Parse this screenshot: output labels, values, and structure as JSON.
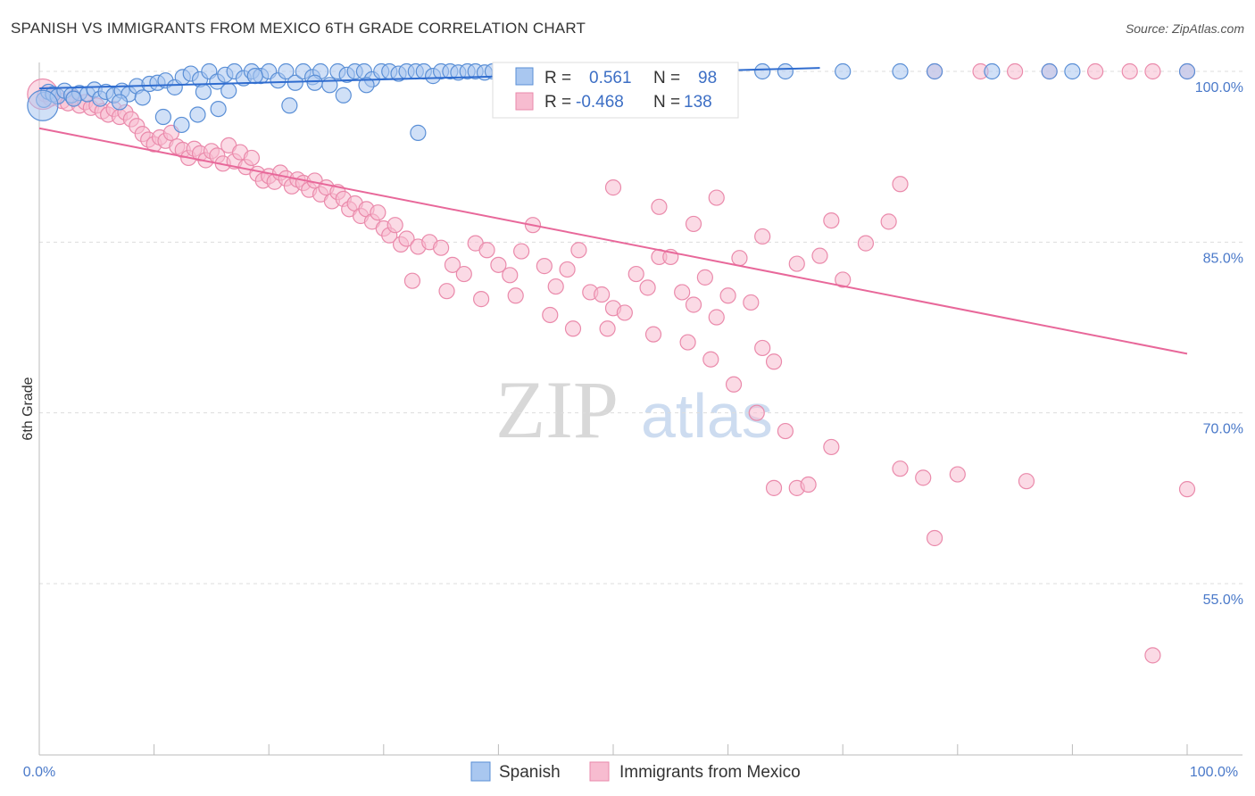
{
  "header": {
    "title": "SPANISH VS IMMIGRANTS FROM MEXICO 6TH GRADE CORRELATION CHART",
    "source": "Source: ZipAtlas.com"
  },
  "watermark": {
    "zip": "ZIP",
    "atlas": "atlas"
  },
  "colors": {
    "spanish_fill": "#a9c7f0",
    "spanish_stroke": "#5a8fd6",
    "spanish_line": "#2f6ccf",
    "mexico_fill": "#f7bcd0",
    "mexico_stroke": "#ea8aab",
    "mexico_line": "#e8689a",
    "axis_text": "#4a79c9",
    "grid": "#dddddd"
  },
  "chart_data": {
    "type": "scatter",
    "title": "SPANISH VS IMMIGRANTS FROM MEXICO 6TH GRADE CORRELATION CHART",
    "xlabel": "",
    "ylabel": "6th Grade",
    "xlim": [
      0,
      100
    ],
    "ylim": [
      40,
      100
    ],
    "x_tick_labels": [
      "0.0%",
      "100.0%"
    ],
    "y_ticks": [
      {
        "value": 100,
        "label": "100.0%"
      },
      {
        "value": 85,
        "label": "85.0%"
      },
      {
        "value": 70,
        "label": "70.0%"
      },
      {
        "value": 55,
        "label": "55.0%"
      }
    ],
    "legend": [
      {
        "r_label": "R =",
        "r_value": "0.561",
        "n_label": "N =",
        "n_value": "98"
      },
      {
        "r_label": "R =",
        "r_value": "-0.468",
        "n_label": "N =",
        "n_value": "138"
      }
    ],
    "series": [
      {
        "name": "Spanish",
        "trend": {
          "x": [
            0,
            68
          ],
          "y": [
            98.5,
            100.3
          ]
        },
        "points": [
          [
            0.4,
            97.5
          ],
          [
            0.8,
            98.2
          ],
          [
            1.2,
            98.0
          ],
          [
            1.6,
            97.8
          ],
          [
            2.2,
            98.3
          ],
          [
            2.8,
            97.9
          ],
          [
            3.5,
            98.1
          ],
          [
            4.2,
            98.0
          ],
          [
            4.8,
            98.4
          ],
          [
            5.3,
            97.6
          ],
          [
            5.8,
            98.2
          ],
          [
            6.5,
            97.9
          ],
          [
            7.2,
            98.3
          ],
          [
            7.8,
            98.0
          ],
          [
            8.5,
            98.7
          ],
          [
            9.0,
            97.7
          ],
          [
            9.6,
            98.9
          ],
          [
            10.3,
            99.0
          ],
          [
            11.0,
            99.2
          ],
          [
            11.8,
            98.6
          ],
          [
            12.5,
            99.5
          ],
          [
            13.2,
            99.8
          ],
          [
            14.0,
            99.3
          ],
          [
            14.8,
            100
          ],
          [
            15.5,
            99.1
          ],
          [
            16.2,
            99.7
          ],
          [
            17.0,
            100
          ],
          [
            17.8,
            99.4
          ],
          [
            18.5,
            100
          ],
          [
            19.3,
            99.6
          ],
          [
            20.0,
            100
          ],
          [
            20.8,
            99.2
          ],
          [
            21.5,
            100
          ],
          [
            22.3,
            99.0
          ],
          [
            23.0,
            100
          ],
          [
            23.8,
            99.5
          ],
          [
            24.5,
            100
          ],
          [
            25.3,
            98.8
          ],
          [
            26.0,
            100
          ],
          [
            26.8,
            99.7
          ],
          [
            27.5,
            100
          ],
          [
            28.3,
            100
          ],
          [
            29.0,
            99.3
          ],
          [
            29.8,
            100
          ],
          [
            30.5,
            100
          ],
          [
            31.3,
            99.8
          ],
          [
            32.0,
            100
          ],
          [
            32.8,
            100
          ],
          [
            33.5,
            100
          ],
          [
            34.3,
            99.6
          ],
          [
            35.0,
            100
          ],
          [
            35.8,
            100
          ],
          [
            36.5,
            99.9
          ],
          [
            37.3,
            100
          ],
          [
            38.0,
            100
          ],
          [
            38.8,
            99.9
          ],
          [
            39.5,
            100
          ],
          [
            40.3,
            100
          ],
          [
            41.0,
            100
          ],
          [
            41.8,
            99.9
          ],
          [
            42.5,
            100
          ],
          [
            43.5,
            100
          ],
          [
            44.5,
            100
          ],
          [
            45.5,
            99.9
          ],
          [
            46.5,
            100
          ],
          [
            47.5,
            100
          ],
          [
            48.5,
            100
          ],
          [
            49.5,
            99.9
          ],
          [
            50.5,
            100
          ],
          [
            51.5,
            100
          ],
          [
            52.5,
            100
          ],
          [
            53.5,
            100
          ],
          [
            55.0,
            100
          ],
          [
            57.0,
            100
          ],
          [
            60.0,
            100
          ],
          [
            63.0,
            100
          ],
          [
            65.0,
            100
          ],
          [
            70.0,
            100
          ],
          [
            75.0,
            100
          ],
          [
            78.0,
            100
          ],
          [
            83.0,
            100
          ],
          [
            88.0,
            100
          ],
          [
            90.0,
            100
          ],
          [
            100,
            100
          ],
          [
            10.8,
            96.0
          ],
          [
            12.4,
            95.3
          ],
          [
            13.8,
            96.2
          ],
          [
            15.6,
            96.7
          ],
          [
            16.5,
            98.3
          ],
          [
            21.8,
            97.0
          ],
          [
            26.5,
            97.9
          ],
          [
            33.0,
            94.6
          ],
          [
            28.5,
            98.8
          ],
          [
            14.3,
            98.2
          ],
          [
            7.0,
            97.3
          ],
          [
            3.0,
            97.6
          ],
          [
            18.8,
            99.6
          ],
          [
            24.0,
            99.0
          ]
        ],
        "big_points": [
          [
            0.3,
            97.0
          ]
        ]
      },
      {
        "name": "Immigrants from Mexico",
        "trend": {
          "x": [
            0,
            100
          ],
          "y": [
            95,
            75.2
          ]
        },
        "points": [
          [
            0.5,
            98.0
          ],
          [
            1.0,
            97.6
          ],
          [
            1.5,
            97.9
          ],
          [
            2.0,
            97.4
          ],
          [
            2.5,
            97.2
          ],
          [
            3.0,
            97.7
          ],
          [
            3.5,
            97.0
          ],
          [
            4.0,
            97.3
          ],
          [
            4.5,
            96.8
          ],
          [
            5.0,
            97.0
          ],
          [
            5.5,
            96.5
          ],
          [
            6.0,
            96.2
          ],
          [
            6.5,
            96.7
          ],
          [
            7.0,
            96.0
          ],
          [
            7.5,
            96.4
          ],
          [
            8.0,
            95.8
          ],
          [
            8.5,
            95.2
          ],
          [
            9.0,
            94.5
          ],
          [
            9.5,
            94.0
          ],
          [
            10.0,
            93.6
          ],
          [
            10.5,
            94.2
          ],
          [
            11.0,
            93.9
          ],
          [
            11.5,
            94.6
          ],
          [
            12.0,
            93.4
          ],
          [
            12.5,
            93.1
          ],
          [
            13.0,
            92.4
          ],
          [
            13.5,
            93.2
          ],
          [
            14.0,
            92.8
          ],
          [
            14.5,
            92.2
          ],
          [
            15.0,
            93.0
          ],
          [
            15.5,
            92.6
          ],
          [
            16.0,
            91.9
          ],
          [
            16.5,
            93.5
          ],
          [
            17.0,
            92.1
          ],
          [
            17.5,
            92.9
          ],
          [
            18.0,
            91.6
          ],
          [
            18.5,
            92.4
          ],
          [
            19.0,
            91.0
          ],
          [
            19.5,
            90.4
          ],
          [
            20.0,
            90.8
          ],
          [
            20.5,
            90.3
          ],
          [
            21.0,
            91.1
          ],
          [
            21.5,
            90.6
          ],
          [
            22.0,
            89.9
          ],
          [
            22.5,
            90.5
          ],
          [
            23.0,
            90.2
          ],
          [
            23.5,
            89.6
          ],
          [
            24.0,
            90.4
          ],
          [
            24.5,
            89.2
          ],
          [
            25.0,
            89.8
          ],
          [
            25.5,
            88.6
          ],
          [
            26.0,
            89.4
          ],
          [
            26.5,
            88.8
          ],
          [
            27.0,
            87.9
          ],
          [
            27.5,
            88.4
          ],
          [
            28.0,
            87.3
          ],
          [
            28.5,
            87.9
          ],
          [
            29.0,
            86.8
          ],
          [
            29.5,
            87.6
          ],
          [
            30.0,
            86.2
          ],
          [
            30.5,
            85.6
          ],
          [
            31.0,
            86.5
          ],
          [
            31.5,
            84.8
          ],
          [
            32.0,
            85.3
          ],
          [
            33.0,
            84.6
          ],
          [
            34.0,
            85.0
          ],
          [
            35.0,
            84.5
          ],
          [
            36.0,
            83.0
          ],
          [
            37.0,
            82.2
          ],
          [
            38.0,
            84.9
          ],
          [
            39.0,
            84.3
          ],
          [
            40.0,
            83.0
          ],
          [
            41.0,
            82.1
          ],
          [
            42.0,
            84.2
          ],
          [
            43.0,
            86.5
          ],
          [
            44.0,
            82.9
          ],
          [
            45.0,
            81.1
          ],
          [
            46.0,
            82.6
          ],
          [
            47.0,
            84.3
          ],
          [
            48.0,
            80.6
          ],
          [
            49.0,
            80.4
          ],
          [
            50.0,
            79.2
          ],
          [
            51.0,
            78.8
          ],
          [
            52.0,
            82.2
          ],
          [
            53.0,
            81.0
          ],
          [
            54.0,
            83.7
          ],
          [
            55.0,
            83.7
          ],
          [
            56.0,
            80.6
          ],
          [
            57.0,
            79.5
          ],
          [
            58.0,
            81.9
          ],
          [
            59.0,
            78.4
          ],
          [
            60.0,
            80.3
          ],
          [
            62.0,
            79.7
          ],
          [
            63.0,
            75.7
          ],
          [
            64.0,
            74.5
          ],
          [
            32.5,
            81.6
          ],
          [
            35.5,
            80.7
          ],
          [
            38.5,
            80.0
          ],
          [
            41.5,
            80.3
          ],
          [
            44.5,
            78.6
          ],
          [
            46.5,
            77.4
          ],
          [
            49.5,
            77.4
          ],
          [
            53.5,
            76.9
          ],
          [
            56.5,
            76.2
          ],
          [
            58.5,
            74.7
          ],
          [
            60.5,
            72.5
          ],
          [
            62.5,
            70.0
          ],
          [
            65.0,
            68.4
          ],
          [
            69.0,
            67.0
          ],
          [
            75.0,
            65.1
          ],
          [
            77.0,
            64.3
          ],
          [
            80.0,
            64.6
          ],
          [
            66.0,
            63.4
          ],
          [
            64.0,
            63.4
          ],
          [
            67.0,
            63.7
          ],
          [
            78.0,
            59.0
          ],
          [
            86.0,
            64.0
          ],
          [
            97.0,
            48.7
          ],
          [
            100,
            63.3
          ],
          [
            50.0,
            89.8
          ],
          [
            54.0,
            88.1
          ],
          [
            57.0,
            86.6
          ],
          [
            59.0,
            88.9
          ],
          [
            61.0,
            83.6
          ],
          [
            63.0,
            85.5
          ],
          [
            66.0,
            83.1
          ],
          [
            68.0,
            83.8
          ],
          [
            69.0,
            86.9
          ],
          [
            70.0,
            81.7
          ],
          [
            72.0,
            84.9
          ],
          [
            74.0,
            86.8
          ],
          [
            75.0,
            90.1
          ],
          [
            78.0,
            100
          ],
          [
            82.0,
            100
          ],
          [
            85.0,
            100
          ],
          [
            92.0,
            100
          ],
          [
            95.0,
            100
          ],
          [
            97.0,
            100
          ],
          [
            100,
            100
          ],
          [
            88.0,
            100
          ]
        ],
        "big_points": [
          [
            0.3,
            98.0
          ]
        ]
      }
    ]
  },
  "bottom_legend": [
    "Spanish",
    "Immigrants from Mexico"
  ]
}
